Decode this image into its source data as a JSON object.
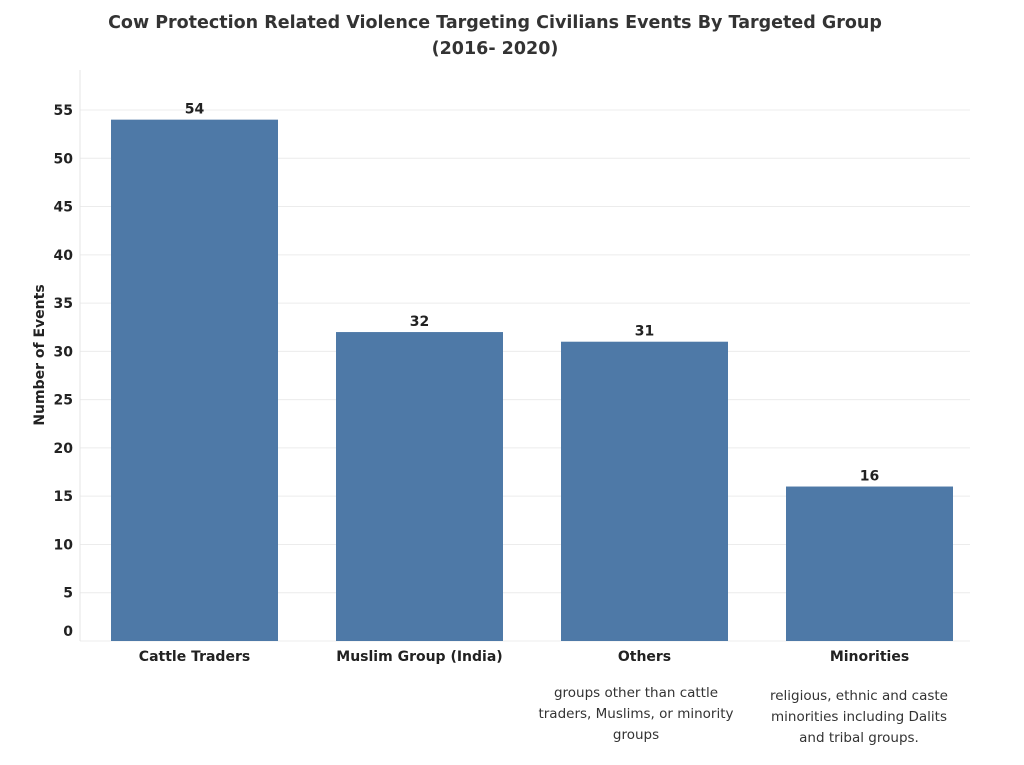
{
  "chart_data": {
    "type": "bar",
    "title": "Cow Protection Related Violence Targeting Civilians Events By Targeted Group",
    "subtitle": "(2016- 2020)",
    "xlabel": "",
    "ylabel": "Number of Events",
    "categories": [
      "Cattle Traders",
      "Muslim Group (India)",
      "Others",
      "Minorities"
    ],
    "category_notes": [
      "",
      "",
      "groups other than cattle traders, Muslims, or minority groups",
      "religious, ethnic and caste minorities including Dalits and tribal groups."
    ],
    "values": [
      54,
      32,
      31,
      16
    ],
    "ylim": [
      0,
      55
    ],
    "yticks": [
      0,
      5,
      10,
      15,
      20,
      25,
      30,
      35,
      40,
      45,
      50,
      55
    ],
    "grid": true,
    "bar_color": "#4e79a7"
  }
}
